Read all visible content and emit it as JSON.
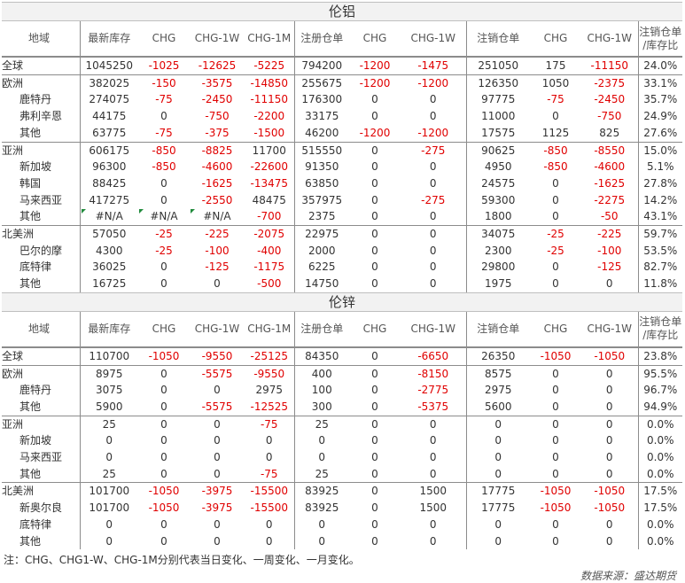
{
  "columns": [
    "地域",
    "最新库存",
    "CHG",
    "CHG-1W",
    "CHG-1M",
    "注册仓单",
    "CHG",
    "CHG-1W",
    "注销仓单",
    "CHG",
    "CHG-1W",
    "注销仓单/库存比"
  ],
  "columns_last_lines": [
    "注销仓单",
    "/库存比"
  ],
  "tables": [
    {
      "title": "伦铝",
      "rows": [
        {
          "level": 0,
          "group_start": true,
          "cells": [
            "全球",
            "1045250",
            "-1025",
            "-12625",
            "-5225",
            "794200",
            "-1200",
            "-1475",
            "251050",
            "175",
            "-11150",
            "24.0%"
          ]
        },
        {
          "level": 0,
          "group_start": true,
          "cells": [
            "欧洲",
            "382025",
            "-150",
            "-3575",
            "-14850",
            "255675",
            "-1200",
            "-1200",
            "126350",
            "1050",
            "-2375",
            "33.1%"
          ]
        },
        {
          "level": 1,
          "cells": [
            "鹿特丹",
            "274075",
            "-75",
            "-2450",
            "-11150",
            "176300",
            "0",
            "0",
            "97775",
            "-75",
            "-2450",
            "35.7%"
          ]
        },
        {
          "level": 1,
          "cells": [
            "弗利辛恩",
            "44175",
            "0",
            "-750",
            "-2200",
            "33175",
            "0",
            "0",
            "11000",
            "0",
            "-750",
            "24.9%"
          ]
        },
        {
          "level": 1,
          "cells": [
            "其他",
            "63775",
            "-75",
            "-375",
            "-1500",
            "46200",
            "-1200",
            "-1200",
            "17575",
            "1125",
            "825",
            "27.6%"
          ]
        },
        {
          "level": 0,
          "group_start": true,
          "cells": [
            "亚洲",
            "606175",
            "-850",
            "-8825",
            "11700",
            "515550",
            "0",
            "-275",
            "90625",
            "-850",
            "-8550",
            "15.0%"
          ]
        },
        {
          "level": 1,
          "cells": [
            "新加坡",
            "96300",
            "-850",
            "-4600",
            "-22600",
            "91350",
            "0",
            "0",
            "4950",
            "-850",
            "-4600",
            "5.1%"
          ]
        },
        {
          "level": 1,
          "cells": [
            "韩国",
            "88425",
            "0",
            "-1625",
            "-13475",
            "63850",
            "0",
            "0",
            "24575",
            "0",
            "-1625",
            "27.8%"
          ]
        },
        {
          "level": 1,
          "cells": [
            "马来西亚",
            "417275",
            "0",
            "-2550",
            "48475",
            "357975",
            "0",
            "-275",
            "59300",
            "0",
            "-2275",
            "14.2%"
          ]
        },
        {
          "level": 1,
          "na": true,
          "cells": [
            "其他",
            "#N/A",
            "#N/A",
            "#N/A",
            "-700",
            "2375",
            "0",
            "0",
            "1800",
            "0",
            "-50",
            "43.1%"
          ]
        },
        {
          "level": 0,
          "group_start": true,
          "cells": [
            "北美洲",
            "57050",
            "-25",
            "-225",
            "-2075",
            "22975",
            "0",
            "0",
            "34075",
            "-25",
            "-225",
            "59.7%"
          ]
        },
        {
          "level": 1,
          "cells": [
            "巴尔的摩",
            "4300",
            "-25",
            "-100",
            "-400",
            "2000",
            "0",
            "0",
            "2300",
            "-25",
            "-100",
            "53.5%"
          ]
        },
        {
          "level": 1,
          "cells": [
            "底特律",
            "36025",
            "0",
            "-125",
            "-1175",
            "6225",
            "0",
            "0",
            "29800",
            "0",
            "-125",
            "82.7%"
          ]
        },
        {
          "level": 1,
          "cells": [
            "其他",
            "16725",
            "0",
            "0",
            "-500",
            "14750",
            "0",
            "0",
            "1975",
            "0",
            "0",
            "11.8%"
          ]
        }
      ]
    },
    {
      "title": "伦锌",
      "rows": [
        {
          "level": 0,
          "group_start": true,
          "cells": [
            "全球",
            "110700",
            "-1050",
            "-9550",
            "-25125",
            "84350",
            "0",
            "-6650",
            "26350",
            "-1050",
            "-1050",
            "23.8%"
          ]
        },
        {
          "level": 0,
          "group_start": true,
          "cells": [
            "欧洲",
            "8975",
            "0",
            "-5575",
            "-9550",
            "400",
            "0",
            "-8150",
            "8575",
            "0",
            "0",
            "95.5%"
          ]
        },
        {
          "level": 1,
          "cells": [
            "鹿特丹",
            "3075",
            "0",
            "0",
            "2975",
            "100",
            "0",
            "-2775",
            "2975",
            "0",
            "0",
            "96.7%"
          ]
        },
        {
          "level": 1,
          "cells": [
            "其他",
            "5900",
            "0",
            "-5575",
            "-12525",
            "300",
            "0",
            "-5375",
            "5600",
            "0",
            "0",
            "94.9%"
          ]
        },
        {
          "level": 0,
          "group_start": true,
          "cells": [
            "亚洲",
            "25",
            "0",
            "0",
            "-75",
            "25",
            "0",
            "0",
            "0",
            "0",
            "0",
            "0.0%"
          ]
        },
        {
          "level": 1,
          "cells": [
            "新加坡",
            "0",
            "0",
            "0",
            "0",
            "0",
            "0",
            "0",
            "0",
            "0",
            "0",
            "0.0%"
          ]
        },
        {
          "level": 1,
          "cells": [
            "马来西亚",
            "0",
            "0",
            "0",
            "0",
            "0",
            "0",
            "0",
            "0",
            "0",
            "0",
            "0.0%"
          ]
        },
        {
          "level": 1,
          "cells": [
            "其他",
            "25",
            "0",
            "0",
            "-75",
            "25",
            "0",
            "0",
            "0",
            "0",
            "0",
            "0.0%"
          ]
        },
        {
          "level": 0,
          "group_start": true,
          "cells": [
            "北美洲",
            "101700",
            "-1050",
            "-3975",
            "-15500",
            "83925",
            "0",
            "1500",
            "17775",
            "-1050",
            "-1050",
            "17.5%"
          ]
        },
        {
          "level": 1,
          "cells": [
            "新奥尔良",
            "101700",
            "-1050",
            "-3975",
            "-15500",
            "83925",
            "0",
            "1500",
            "17775",
            "-1050",
            "-1050",
            "17.5%"
          ]
        },
        {
          "level": 1,
          "cells": [
            "底特律",
            "0",
            "0",
            "0",
            "0",
            "0",
            "0",
            "0",
            "0",
            "0",
            "0",
            "0.0%"
          ]
        },
        {
          "level": 1,
          "cells": [
            "其他",
            "0",
            "0",
            "0",
            "0",
            "0",
            "0",
            "0",
            "0",
            "0",
            "0",
            "0.0%"
          ]
        }
      ]
    }
  ],
  "note": "注：CHG、CHG1-W、CHG-1M分别代表当日变化、一周变化、一月变化。",
  "source": "数据来源：盛达期货",
  "colors": {
    "negative": "#e00000",
    "header_bg": "#f2f2f2",
    "na_flag": "#1f8a3b"
  }
}
